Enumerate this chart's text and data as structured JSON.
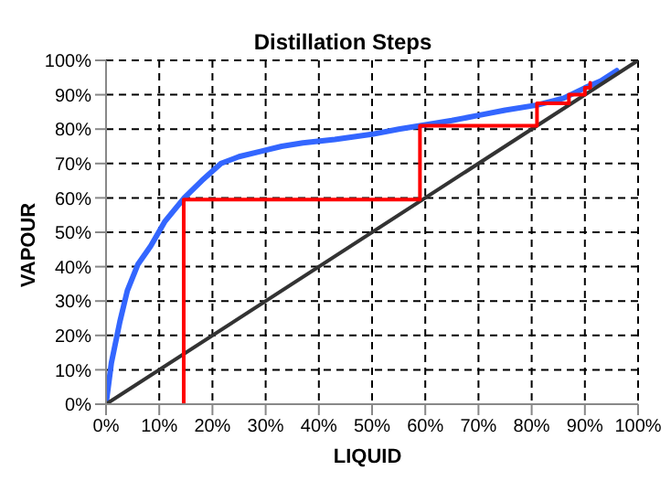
{
  "chart_data": {
    "type": "line",
    "title": "Distillation Steps",
    "xlabel": "LIQUID",
    "ylabel": "VAPOUR",
    "xlim": [
      0,
      100
    ],
    "ylim": [
      0,
      100
    ],
    "xticks": [
      {
        "value": 0,
        "label": "0%"
      },
      {
        "value": 10,
        "label": "10%"
      },
      {
        "value": 20,
        "label": "20%"
      },
      {
        "value": 30,
        "label": "30%"
      },
      {
        "value": 40,
        "label": "40%"
      },
      {
        "value": 50,
        "label": "50%"
      },
      {
        "value": 60,
        "label": "60%"
      },
      {
        "value": 70,
        "label": "70%"
      },
      {
        "value": 80,
        "label": "80%"
      },
      {
        "value": 90,
        "label": "90%"
      },
      {
        "value": 100,
        "label": "100%"
      }
    ],
    "yticks": [
      {
        "value": 0,
        "label": "0%"
      },
      {
        "value": 10,
        "label": "10%"
      },
      {
        "value": 20,
        "label": "20%"
      },
      {
        "value": 30,
        "label": "30%"
      },
      {
        "value": 40,
        "label": "40%"
      },
      {
        "value": 50,
        "label": "50%"
      },
      {
        "value": 60,
        "label": "60%"
      },
      {
        "value": 70,
        "label": "70%"
      },
      {
        "value": 80,
        "label": "80%"
      },
      {
        "value": 90,
        "label": "90%"
      },
      {
        "value": 100,
        "label": "100%"
      }
    ],
    "grid": true,
    "line_style": "solid",
    "marker": "none",
    "series": [
      {
        "color": "#3366ff",
        "x": [
          0,
          1,
          2.6,
          4,
          6,
          8.4,
          11,
          14.7,
          18,
          21.6,
          25,
          29,
          33,
          37,
          43,
          50,
          55,
          59,
          65,
          70,
          75,
          81,
          86,
          90,
          93,
          96
        ],
        "values": [
          0,
          12,
          24,
          33,
          40.7,
          46,
          53,
          60,
          65,
          70,
          72,
          73.5,
          75,
          76,
          77,
          78.5,
          80,
          81,
          82.5,
          84,
          85.5,
          87,
          89,
          92,
          94,
          97
        ]
      },
      {
        "color": "#333333",
        "x": [
          0,
          100
        ],
        "values": [
          0,
          100
        ]
      },
      {
        "color": "#ff0000",
        "x": [
          14.6,
          14.6,
          59,
          59,
          81,
          81,
          87,
          87,
          90,
          90,
          91,
          91
        ],
        "values": [
          0,
          59.5,
          59.5,
          81,
          81,
          87.5,
          87.5,
          90,
          90,
          92,
          92,
          93.5
        ]
      }
    ]
  }
}
